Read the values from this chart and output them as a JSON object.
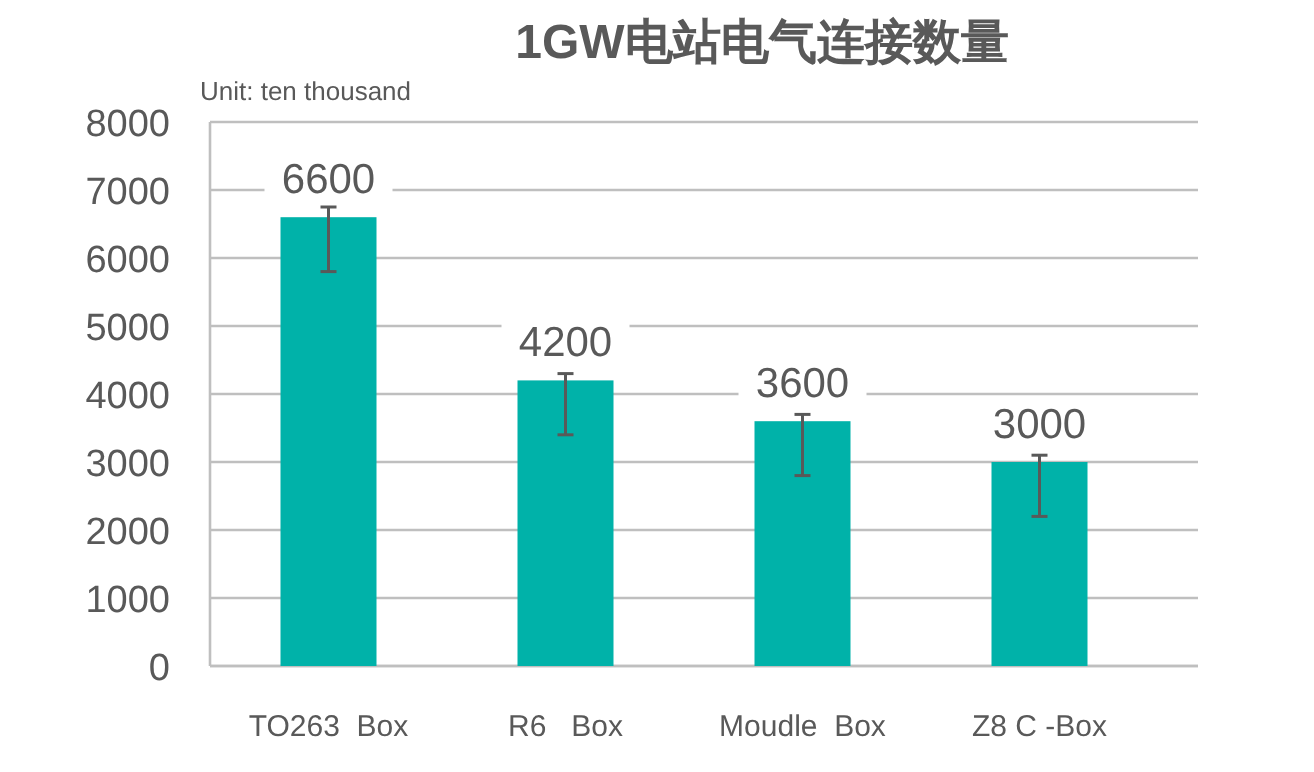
{
  "chart_data": {
    "type": "bar",
    "title": "1GW电站电气连接数量",
    "annotations": [
      "Unit: ten thousand"
    ],
    "categories": [
      "TO263  Box",
      "R6   Box",
      "Moudle  Box",
      "Z8 C -Box"
    ],
    "values": [
      6600,
      4200,
      3600,
      3000
    ],
    "color": "#00b2a9",
    "errors": [
      [
        5800,
        6750
      ],
      [
        3400,
        4300
      ],
      [
        2800,
        3700
      ],
      [
        2200,
        3100
      ]
    ],
    "ylim": [
      0,
      8000
    ],
    "yticks": [
      0,
      1000,
      2000,
      3000,
      4000,
      5000,
      6000,
      7000,
      8000
    ],
    "grid": "y",
    "data_labels": true
  }
}
